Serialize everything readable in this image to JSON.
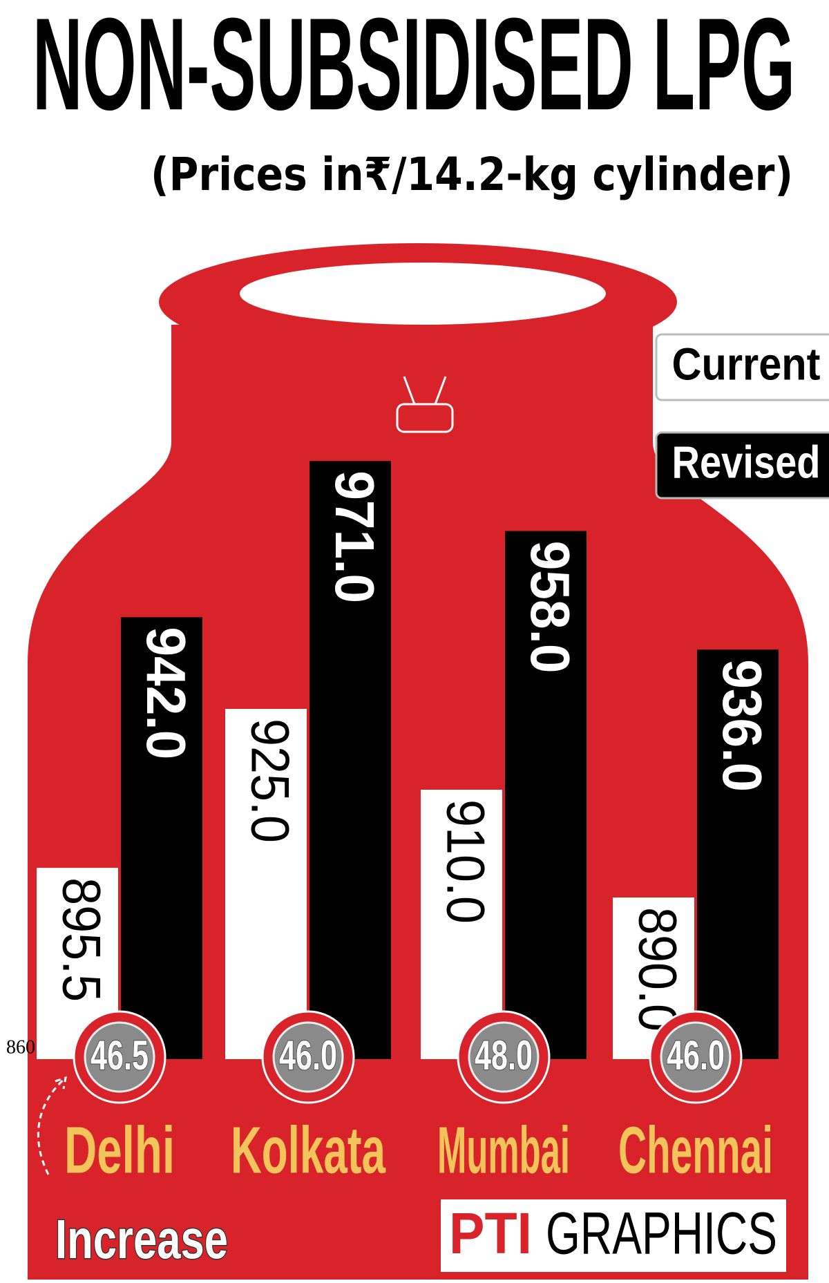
{
  "chart_data": {
    "type": "bar",
    "title": "NON-SUBSIDISED LPG",
    "subtitle": "(Prices in₹/14.2-kg cylinder)",
    "categories": [
      "Delhi",
      "Kolkata",
      "Mumbai",
      "Chennai"
    ],
    "series": [
      {
        "name": "Current",
        "color": "#ffffff",
        "values": [
          895.5,
          925.0,
          910.0,
          890.0
        ],
        "value_labels": [
          "895.5",
          "925.0",
          "910.0",
          "890.0"
        ]
      },
      {
        "name": "Revised",
        "color": "#000000",
        "values": [
          942.0,
          971.0,
          958.0,
          936.0
        ],
        "value_labels": [
          "942.0",
          "971.0",
          "958.0",
          "936.0"
        ]
      }
    ],
    "increase": {
      "name": "Increase",
      "values": [
        46.5,
        46.0,
        48.0,
        46.0
      ],
      "value_labels": [
        "46.5",
        "46.0",
        "48.0",
        "46.0"
      ]
    },
    "ylim": [
      860,
      980
    ],
    "yticks": [
      860
    ],
    "source_logo": "PTI",
    "source_text": "GRAPHICS"
  }
}
